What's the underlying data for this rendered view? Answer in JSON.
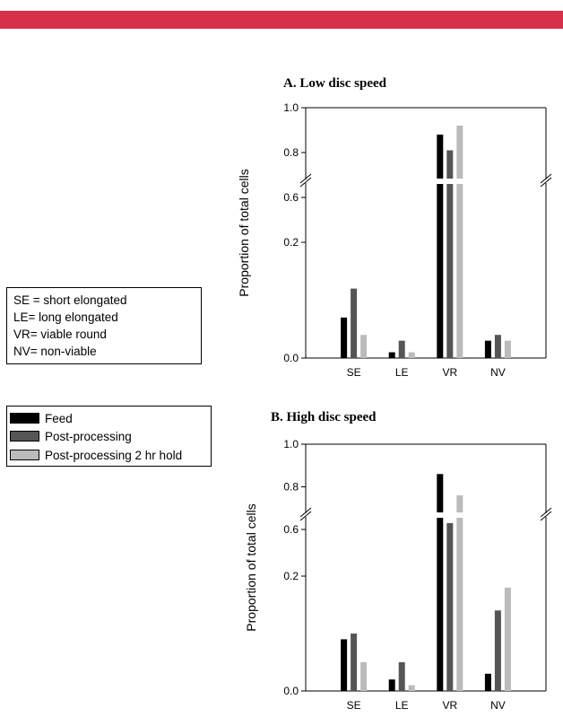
{
  "header": {
    "bar_color": "#d6304b"
  },
  "abbreviations": [
    "SE = short elongated",
    "LE= long elongated",
    "VR= viable round",
    "NV= non-viable"
  ],
  "legend": {
    "items": [
      {
        "label": "Feed",
        "color": "#000000"
      },
      {
        "label": "Post-processing",
        "color": "#555555"
      },
      {
        "label": "Post-processing 2 hr hold",
        "color": "#bbbbbb"
      }
    ]
  },
  "chart_data": [
    {
      "type": "bar",
      "title": "A. Low disc speed",
      "ylabel": "Proportion of total cells",
      "xlabel": "",
      "categories": [
        "SE",
        "LE",
        "VR",
        "NV"
      ],
      "axis_breaks": "broken y-axis between 0.2 and 0.6",
      "yticks_lower": [
        "0.0",
        "0.2"
      ],
      "yticks_upper": [
        "0.6",
        "0.8",
        "1.0"
      ],
      "series": [
        {
          "name": "Feed",
          "values": [
            0.07,
            0.01,
            0.88,
            0.03
          ]
        },
        {
          "name": "Post-processing",
          "values": [
            0.12,
            0.03,
            0.81,
            0.04
          ]
        },
        {
          "name": "Post-processing 2 hr hold",
          "values": [
            0.04,
            0.01,
            0.92,
            0.03
          ]
        }
      ]
    },
    {
      "type": "bar",
      "title": "B. High disc speed",
      "ylabel": "Proportion of total cells",
      "xlabel": "",
      "categories": [
        "SE",
        "LE",
        "VR",
        "NV"
      ],
      "axis_breaks": "broken y-axis between 0.2 and 0.6",
      "yticks_lower": [
        "0.0",
        "0.2"
      ],
      "yticks_upper": [
        "0.6",
        "0.8",
        "1.0"
      ],
      "series": [
        {
          "name": "Feed",
          "values": [
            0.09,
            0.02,
            0.86,
            0.03
          ]
        },
        {
          "name": "Post-processing",
          "values": [
            0.1,
            0.05,
            0.63,
            0.22
          ]
        },
        {
          "name": "Post-processing 2 hr hold",
          "values": [
            0.05,
            0.01,
            0.76,
            0.18
          ]
        }
      ]
    }
  ]
}
